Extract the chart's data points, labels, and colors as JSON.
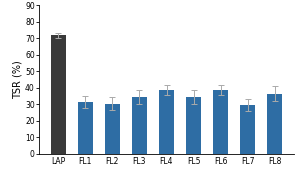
{
  "categories": [
    "LAP",
    "FL1",
    "FL2",
    "FL3",
    "FL4",
    "FL5",
    "FL6",
    "FL7",
    "FL8"
  ],
  "values": [
    72,
    31.5,
    30.5,
    34.5,
    38.5,
    34.5,
    38.5,
    29.5,
    36.5
  ],
  "errors": [
    1.5,
    3.5,
    4.0,
    4.5,
    3.0,
    4.0,
    3.0,
    3.5,
    4.5
  ],
  "bar_colors": [
    "#3a3a3a",
    "#2e6da4",
    "#2e6da4",
    "#2e6da4",
    "#2e6da4",
    "#2e6da4",
    "#2e6da4",
    "#2e6da4",
    "#2e6da4"
  ],
  "ylabel": "TSR (%)",
  "ylim": [
    0,
    90
  ],
  "yticks": [
    0,
    10,
    20,
    30,
    40,
    50,
    60,
    70,
    80,
    90
  ],
  "background_color": "#ffffff",
  "capsize": 2,
  "bar_width": 0.55,
  "ecolor": "#aaaaaa",
  "elinewidth": 0.7,
  "ylabel_fontsize": 7,
  "tick_fontsize": 5.5
}
